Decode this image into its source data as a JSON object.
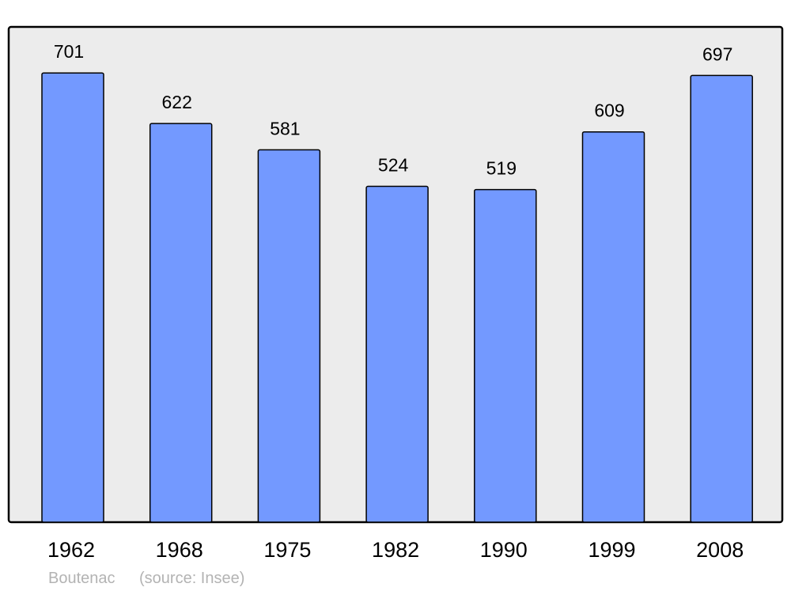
{
  "chart_data": {
    "type": "bar",
    "categories": [
      "1962",
      "1968",
      "1975",
      "1982",
      "1990",
      "1999",
      "2008"
    ],
    "values": [
      701,
      622,
      581,
      524,
      519,
      609,
      697
    ],
    "data_labels": true,
    "title": "",
    "xlabel": "",
    "ylabel": "",
    "ylim": [
      0,
      773
    ],
    "grid": false,
    "colors": {
      "bar": "#7399ff",
      "plot_background": "#ececec",
      "stroke": "#000000"
    }
  },
  "footer": {
    "place": "Boutenac",
    "source": "(source: Insee)"
  }
}
